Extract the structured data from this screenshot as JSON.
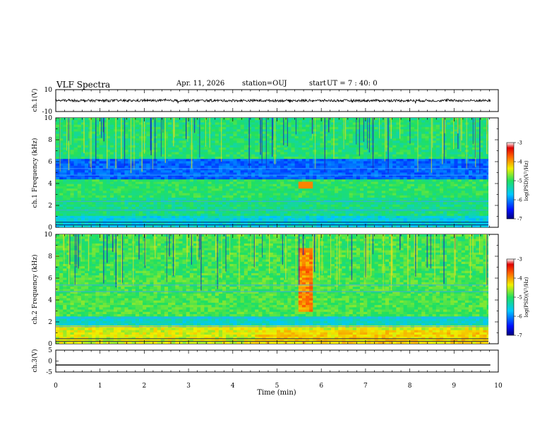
{
  "header": {
    "title": "VLF Spectra",
    "date": "Apr. 11, 2026",
    "station": "station=OUJ",
    "start_label": "start",
    "start_ut": "UT = 7 : 40: 0"
  },
  "chart_data": [
    {
      "type": "line",
      "name": "ch1-waveform",
      "ylabel": "ch.1(V)",
      "ylim": [
        -10,
        10
      ],
      "yticks": [
        "10",
        "-10"
      ],
      "x_range_min": [
        0,
        9.82
      ],
      "description_level": "noise band approx ±1 V around 0"
    },
    {
      "type": "heatmap",
      "name": "ch1-spectrogram",
      "ylabel": "ch.1 Frequency (kHz)",
      "ylim": [
        0,
        10
      ],
      "yticks": [
        "0",
        "2",
        "4",
        "6",
        "8",
        "10"
      ],
      "colorbar": {
        "label": "log(PSD)(V²/Hz)",
        "ticks": [
          "-3",
          "-4",
          "-5",
          "-6",
          "-7"
        ],
        "range": [
          -7,
          -3
        ]
      }
    },
    {
      "type": "heatmap",
      "name": "ch2-spectrogram",
      "ylabel": "ch.2 Frequency (kHz)",
      "ylim": [
        0,
        10
      ],
      "yticks": [
        "0",
        "2",
        "4",
        "6",
        "8",
        "10"
      ],
      "colorbar": {
        "label": "log(PSD)(V²/Hz)",
        "ticks": [
          "-3",
          "-4",
          "-5",
          "-6",
          "-7"
        ],
        "range": [
          -7,
          -3
        ]
      }
    },
    {
      "type": "line",
      "name": "ch3-waveform",
      "ylabel": "ch.3(V)",
      "ylim": [
        -5,
        5
      ],
      "yticks": [
        "5",
        "0",
        "-5"
      ],
      "level": -1.8
    }
  ],
  "xaxis": {
    "label": "Time (min)",
    "range": [
      0,
      10
    ],
    "ticks": [
      "0",
      "1",
      "2",
      "3",
      "4",
      "5",
      "6",
      "7",
      "8",
      "9",
      "10"
    ]
  }
}
